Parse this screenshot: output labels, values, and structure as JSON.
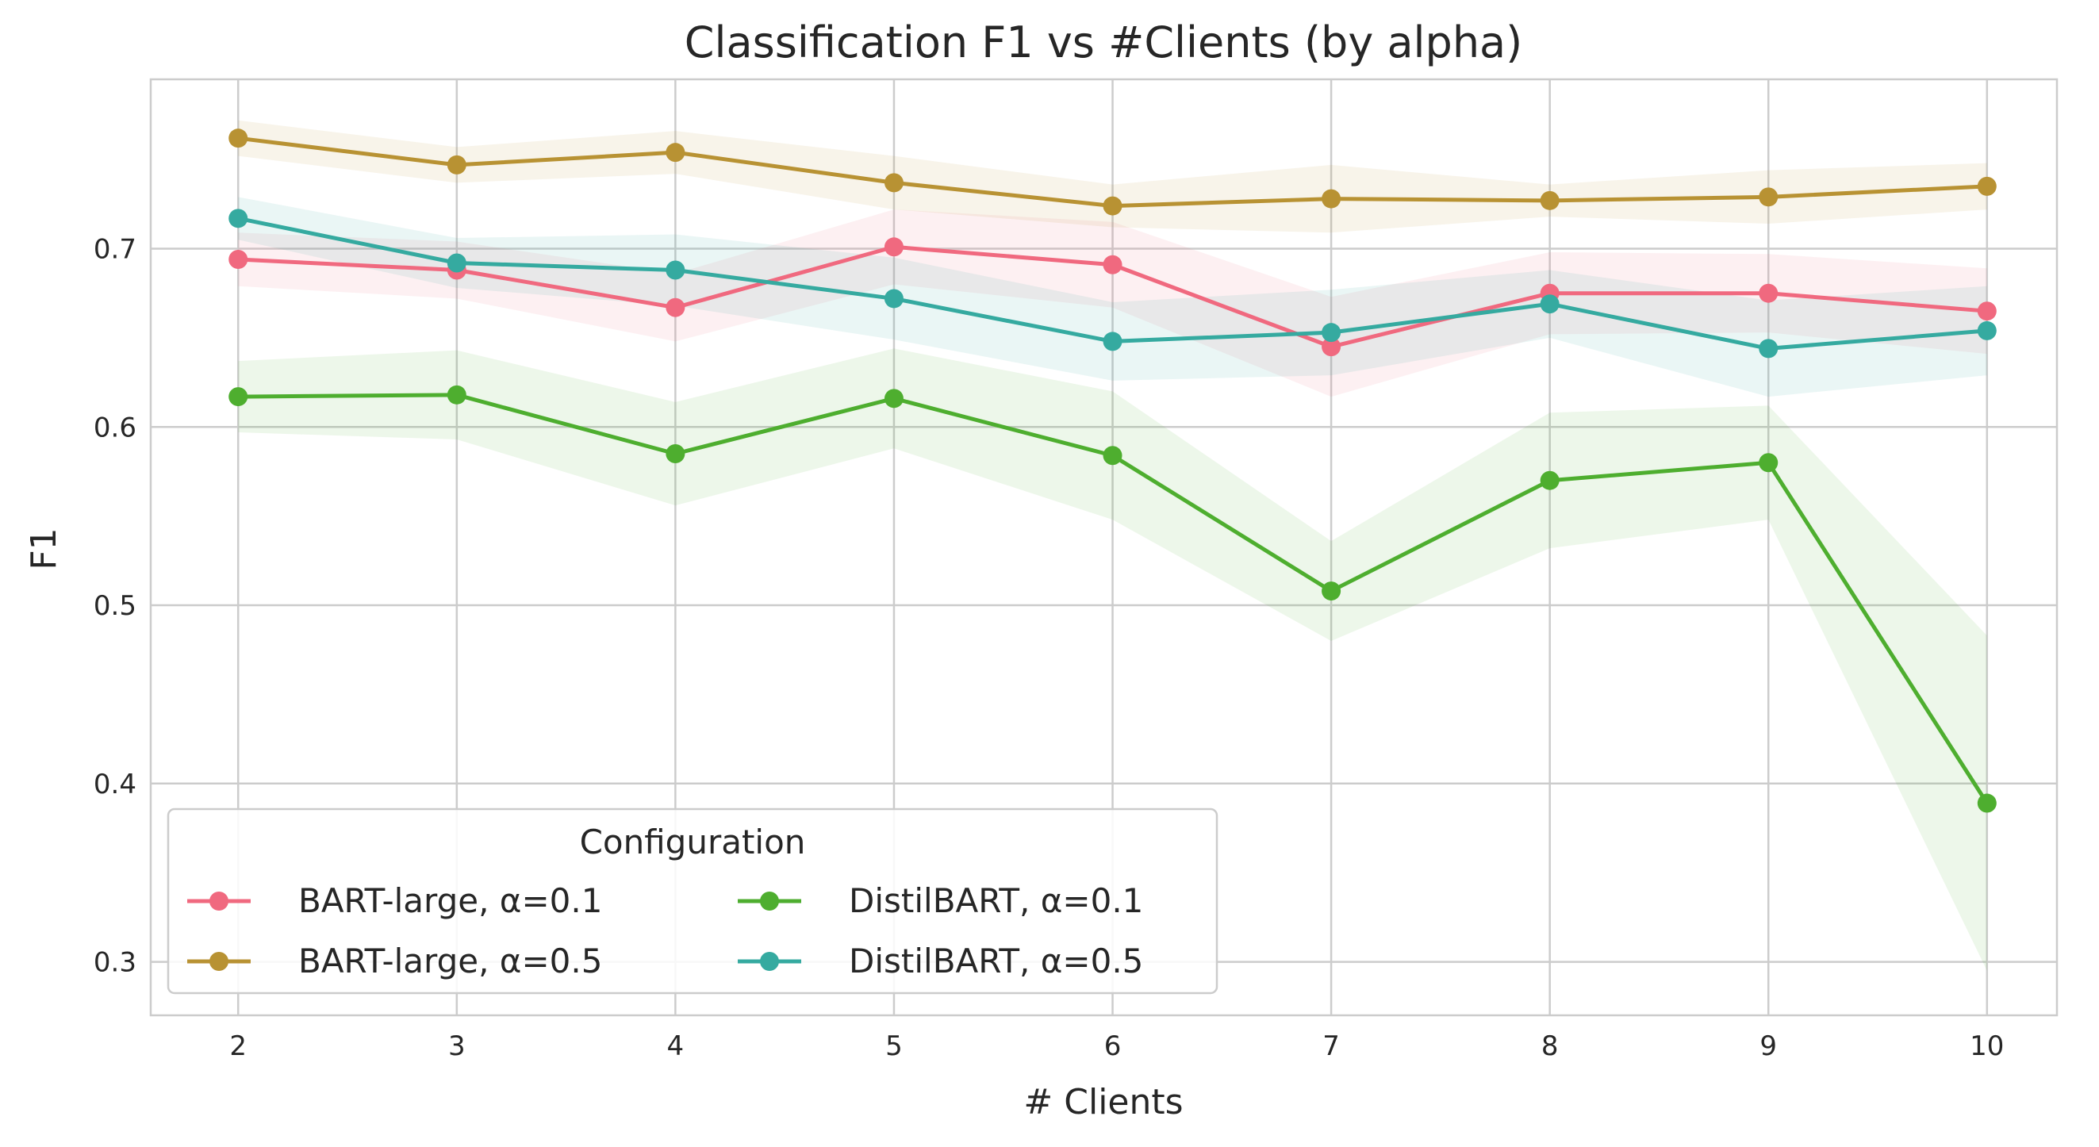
{
  "chart_data": {
    "type": "line",
    "title": "Classification F1 vs #Clients (by alpha)",
    "xlabel": "# Clients",
    "ylabel": "F1",
    "x": [
      2,
      3,
      4,
      5,
      6,
      7,
      8,
      9,
      10
    ],
    "x_tick_labels": [
      "2",
      "3",
      "4",
      "5",
      "6",
      "7",
      "8",
      "9",
      "10"
    ],
    "y_ticks": [
      0.3,
      0.4,
      0.5,
      0.6,
      0.7
    ],
    "y_tick_labels": [
      "0.3",
      "0.4",
      "0.5",
      "0.6",
      "0.7"
    ],
    "xlim": [
      1.6,
      10.32
    ],
    "ylim": [
      0.27,
      0.795
    ],
    "grid": true,
    "legend": {
      "title": "Configuration",
      "placement": "lower-left",
      "columns": 2
    },
    "series": [
      {
        "name": "BART-large, α=0.1",
        "color": "#f0697f",
        "values": [
          0.694,
          0.688,
          0.667,
          0.701,
          0.691,
          0.645,
          0.675,
          0.675,
          0.665
        ],
        "lower": [
          0.679,
          0.672,
          0.648,
          0.68,
          0.667,
          0.617,
          0.652,
          0.653,
          0.641
        ],
        "upper": [
          0.709,
          0.704,
          0.686,
          0.722,
          0.715,
          0.673,
          0.698,
          0.697,
          0.689
        ]
      },
      {
        "name": "BART-large, α=0.5",
        "color": "#b89233",
        "values": [
          0.762,
          0.747,
          0.754,
          0.737,
          0.724,
          0.728,
          0.727,
          0.729,
          0.735
        ],
        "lower": [
          0.752,
          0.737,
          0.742,
          0.722,
          0.712,
          0.709,
          0.718,
          0.714,
          0.722
        ],
        "upper": [
          0.772,
          0.757,
          0.766,
          0.752,
          0.736,
          0.747,
          0.736,
          0.744,
          0.748
        ]
      },
      {
        "name": "DistilBART, α=0.1",
        "color": "#4eae2f",
        "values": [
          0.617,
          0.618,
          0.585,
          0.616,
          0.584,
          0.508,
          0.57,
          0.58,
          0.389
        ],
        "lower": [
          0.597,
          0.593,
          0.556,
          0.588,
          0.548,
          0.48,
          0.532,
          0.548,
          0.295
        ],
        "upper": [
          0.637,
          0.643,
          0.614,
          0.644,
          0.62,
          0.536,
          0.608,
          0.612,
          0.483
        ]
      },
      {
        "name": "DistilBART, α=0.5",
        "color": "#35aaa0",
        "values": [
          0.717,
          0.692,
          0.688,
          0.672,
          0.648,
          0.653,
          0.669,
          0.644,
          0.654
        ],
        "lower": [
          0.705,
          0.678,
          0.668,
          0.649,
          0.626,
          0.629,
          0.65,
          0.617,
          0.629
        ],
        "upper": [
          0.729,
          0.706,
          0.708,
          0.695,
          0.67,
          0.677,
          0.688,
          0.671,
          0.679
        ]
      }
    ],
    "legend_order": [
      0,
      2,
      1,
      3
    ]
  }
}
